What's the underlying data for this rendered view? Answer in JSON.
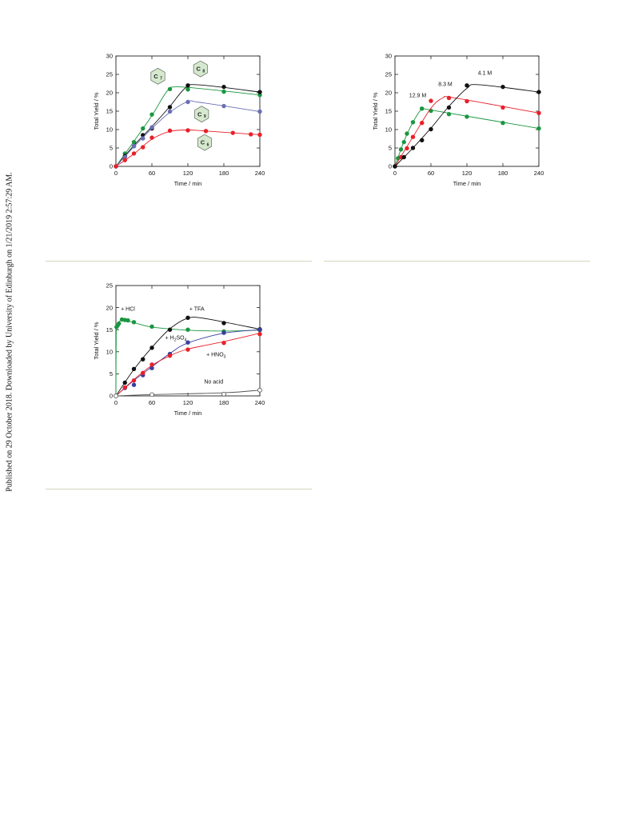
{
  "margin_note": "Published on 29 October 2018. Downloaded by University of Edinburgh on 1/21/2019 2:57:29 AM.",
  "chart_data": [
    {
      "type": "line",
      "xlabel": "Time / min",
      "ylabel": "Total Yield / %",
      "xlim": [
        0,
        240
      ],
      "ylim": [
        0,
        30
      ],
      "xticks": [
        "0",
        "60",
        "120",
        "180",
        "240"
      ],
      "yticks": [
        "0",
        "5",
        "10",
        "15",
        "20",
        "25",
        "30"
      ],
      "series": [
        {
          "name": "C7",
          "color": "#1a9640",
          "points": [
            [
              0,
              0
            ],
            [
              15,
              3.5
            ],
            [
              30,
              6.6
            ],
            [
              45,
              10.3
            ],
            [
              60,
              14.1
            ],
            [
              90,
              21.0
            ],
            [
              120,
              20.9
            ],
            [
              180,
              20.3
            ],
            [
              240,
              19.4
            ]
          ],
          "curve": [
            [
              0,
              0
            ],
            [
              30,
              6.8
            ],
            [
              60,
              13.8
            ],
            [
              85,
              20.4
            ],
            [
              100,
              21.6
            ],
            [
              150,
              21.0
            ],
            [
              240,
              19.4
            ]
          ]
        },
        {
          "name": "C8",
          "color": "#111111",
          "points": [
            [
              0,
              0
            ],
            [
              15,
              2.8
            ],
            [
              30,
              5.5
            ],
            [
              45,
              8.5
            ],
            [
              60,
              10.3
            ],
            [
              90,
              16.1
            ],
            [
              120,
              22.0
            ],
            [
              180,
              21.6
            ],
            [
              240,
              20.2
            ]
          ],
          "curve": [
            [
              0,
              0
            ],
            [
              30,
              5.7
            ],
            [
              60,
              10.8
            ],
            [
              90,
              16.3
            ],
            [
              115,
              21.2
            ],
            [
              135,
              22.2
            ],
            [
              240,
              20.2
            ]
          ]
        },
        {
          "name": "C9",
          "color": "#6a6fb3",
          "points": [
            [
              0,
              0
            ],
            [
              15,
              2.5
            ],
            [
              30,
              5.5
            ],
            [
              45,
              7.6
            ],
            [
              60,
              10.6
            ],
            [
              90,
              14.9
            ],
            [
              120,
              17.5
            ],
            [
              180,
              16.4
            ],
            [
              240,
              14.9
            ]
          ],
          "curve": [
            [
              0,
              0
            ],
            [
              30,
              5.3
            ],
            [
              60,
              10.3
            ],
            [
              90,
              14.7
            ],
            [
              120,
              17.6
            ],
            [
              140,
              17.4
            ],
            [
              240,
              14.9
            ]
          ]
        },
        {
          "name": "C6",
          "color": "#e8202a",
          "points": [
            [
              0,
              0
            ],
            [
              15,
              1.7
            ],
            [
              30,
              3.5
            ],
            [
              45,
              5.2
            ],
            [
              60,
              7.8
            ],
            [
              90,
              9.7
            ],
            [
              120,
              9.8
            ],
            [
              150,
              9.6
            ],
            [
              195,
              9.1
            ],
            [
              225,
              8.7
            ],
            [
              240,
              8.6
            ]
          ],
          "curve": [
            [
              0,
              0
            ],
            [
              30,
              3.4
            ],
            [
              60,
              7.4
            ],
            [
              90,
              9.5
            ],
            [
              120,
              9.9
            ],
            [
              150,
              9.6
            ],
            [
              240,
              8.6
            ]
          ]
        }
      ],
      "annotations": [
        {
          "label": "C",
          "sub": "7",
          "x": 70,
          "y": 24.5
        },
        {
          "label": "C",
          "sub": "8",
          "x": 141,
          "y": 26.5
        },
        {
          "label": "C",
          "sub": "9",
          "x": 143,
          "y": 14.2
        },
        {
          "label": "C",
          "sub": "6",
          "x": 148,
          "y": 6.5
        }
      ]
    },
    {
      "type": "line",
      "xlabel": "Time / min",
      "ylabel": "Total Yield / %",
      "xlim": [
        0,
        240
      ],
      "ylim": [
        0,
        30
      ],
      "xticks": [
        "0",
        "60",
        "120",
        "180",
        "240"
      ],
      "yticks": [
        "0",
        "5",
        "10",
        "15",
        "20",
        "25",
        "30"
      ],
      "series": [
        {
          "name": "12.9 M",
          "color": "#1a9640",
          "points": [
            [
              0,
              0
            ],
            [
              5,
              2.2
            ],
            [
              10,
              4.6
            ],
            [
              15,
              6.6
            ],
            [
              20,
              8.9
            ],
            [
              30,
              12.0
            ],
            [
              45,
              15.7
            ],
            [
              60,
              15.1
            ],
            [
              90,
              14.2
            ],
            [
              120,
              13.5
            ],
            [
              180,
              11.8
            ],
            [
              240,
              10.3
            ]
          ],
          "curve": [
            [
              0,
              0
            ],
            [
              15,
              6.8
            ],
            [
              30,
              12.0
            ],
            [
              45,
              15.6
            ],
            [
              60,
              15.3
            ],
            [
              240,
              10.3
            ]
          ]
        },
        {
          "name": "8.3 M",
          "color": "#e8202a",
          "points": [
            [
              0,
              0
            ],
            [
              10,
              2.5
            ],
            [
              20,
              4.9
            ],
            [
              30,
              8.0
            ],
            [
              45,
              11.8
            ],
            [
              60,
              17.8
            ],
            [
              90,
              18.6
            ],
            [
              120,
              17.7
            ],
            [
              180,
              16.0
            ],
            [
              240,
              14.5
            ]
          ],
          "curve": [
            [
              0,
              0
            ],
            [
              30,
              8.0
            ],
            [
              60,
              15.8
            ],
            [
              80,
              18.6
            ],
            [
              100,
              18.6
            ],
            [
              240,
              14.5
            ]
          ]
        },
        {
          "name": "4.1 M",
          "color": "#111111",
          "points": [
            [
              0,
              0
            ],
            [
              15,
              2.5
            ],
            [
              30,
              5.0
            ],
            [
              45,
              7.1
            ],
            [
              60,
              10.1
            ],
            [
              90,
              16.0
            ],
            [
              120,
              22.0
            ],
            [
              180,
              21.6
            ],
            [
              240,
              20.2
            ]
          ],
          "curve": [
            [
              0,
              0
            ],
            [
              30,
              5.0
            ],
            [
              60,
              10.4
            ],
            [
              90,
              16.3
            ],
            [
              120,
              21.2
            ],
            [
              140,
              22.2
            ],
            [
              240,
              20.2
            ]
          ]
        }
      ],
      "annotations": [
        {
          "label": "12.9 M",
          "x": 38,
          "y": 18.8
        },
        {
          "label": "8.3 M",
          "x": 84,
          "y": 21.9
        },
        {
          "label": "4.1 M",
          "x": 150,
          "y": 24.9
        }
      ]
    },
    {
      "type": "line",
      "xlabel": "Time / min",
      "ylabel": "Total Yield / %",
      "xlim": [
        0,
        240
      ],
      "ylim": [
        0,
        25
      ],
      "xticks": [
        "0",
        "60",
        "120",
        "180",
        "240"
      ],
      "yticks": [
        "0",
        "5",
        "10",
        "15",
        "20",
        "25"
      ],
      "series": [
        {
          "name": "+ HCl",
          "color": "#1a9640",
          "points": [
            [
              1,
              15.6
            ],
            [
              3,
              16.0
            ],
            [
              5,
              16.4
            ],
            [
              10,
              17.3
            ],
            [
              15,
              17.2
            ],
            [
              20,
              17.1
            ],
            [
              30,
              16.7
            ],
            [
              60,
              15.7
            ],
            [
              120,
              15.0
            ],
            [
              180,
              14.6
            ],
            [
              240,
              14.9
            ]
          ],
          "curve": [
            [
              0,
              0
            ],
            [
              0.5,
              14
            ],
            [
              2,
              15.9
            ],
            [
              10,
              17.2
            ],
            [
              30,
              16.6
            ],
            [
              60,
              15.6
            ],
            [
              120,
              14.9
            ],
            [
              180,
              14.7
            ],
            [
              240,
              14.9
            ]
          ]
        },
        {
          "name": "+ TFA",
          "color": "#111111",
          "points": [
            [
              0,
              0
            ],
            [
              15,
              3.0
            ],
            [
              30,
              6.1
            ],
            [
              45,
              8.3
            ],
            [
              60,
              10.9
            ],
            [
              90,
              15.0
            ],
            [
              120,
              17.7
            ],
            [
              180,
              16.5
            ],
            [
              240,
              15.1
            ]
          ],
          "curve": [
            [
              0,
              0
            ],
            [
              30,
              6.0
            ],
            [
              60,
              11.0
            ],
            [
              90,
              15.2
            ],
            [
              120,
              17.6
            ],
            [
              150,
              17.5
            ],
            [
              240,
              15.1
            ]
          ]
        },
        {
          "name": "+ H2SO4",
          "color": "#383f9c",
          "points": [
            [
              0,
              0
            ],
            [
              15,
              1.8
            ],
            [
              30,
              2.5
            ],
            [
              45,
              4.7
            ],
            [
              60,
              6.3
            ],
            [
              90,
              9.5
            ],
            [
              120,
              12.1
            ],
            [
              180,
              14.3
            ],
            [
              240,
              15.0
            ]
          ],
          "curve": [
            [
              0,
              0
            ],
            [
              30,
              3.5
            ],
            [
              60,
              6.6
            ],
            [
              90,
              9.6
            ],
            [
              120,
              12.0
            ],
            [
              180,
              14.2
            ],
            [
              240,
              15.0
            ]
          ]
        },
        {
          "name": "+ HNO3",
          "color": "#e8202a",
          "points": [
            [
              0,
              0
            ],
            [
              15,
              1.9
            ],
            [
              30,
              3.5
            ],
            [
              45,
              5.2
            ],
            [
              60,
              7.1
            ],
            [
              90,
              9.1
            ],
            [
              120,
              10.5
            ],
            [
              180,
              12.0
            ],
            [
              240,
              14.0
            ]
          ],
          "curve": [
            [
              0,
              0
            ],
            [
              30,
              3.7
            ],
            [
              60,
              6.9
            ],
            [
              90,
              9.1
            ],
            [
              120,
              10.6
            ],
            [
              180,
              12.3
            ],
            [
              240,
              14.2
            ]
          ]
        },
        {
          "name": "No acid",
          "color": "#555555",
          "open": true,
          "points": [
            [
              0,
              0
            ],
            [
              60,
              0.3
            ],
            [
              180,
              0.4
            ],
            [
              240,
              1.3
            ]
          ],
          "curve": [
            [
              0,
              0
            ],
            [
              60,
              0.3
            ],
            [
              180,
              0.7
            ],
            [
              240,
              1.3
            ]
          ]
        }
      ],
      "annotations": [
        {
          "label": "+ HCl",
          "x": 20,
          "y": 19.3
        },
        {
          "label": "+ TFA",
          "x": 135,
          "y": 19.3
        },
        {
          "label": "+ H",
          "sub": "2",
          "tail": "SO",
          "sub2": "4",
          "x": 100,
          "y": 12.8
        },
        {
          "label": "+ HNO",
          "sub": "3",
          "x": 167,
          "y": 9.0
        },
        {
          "label": "No acid",
          "x": 163,
          "y": 2.8
        }
      ]
    }
  ]
}
